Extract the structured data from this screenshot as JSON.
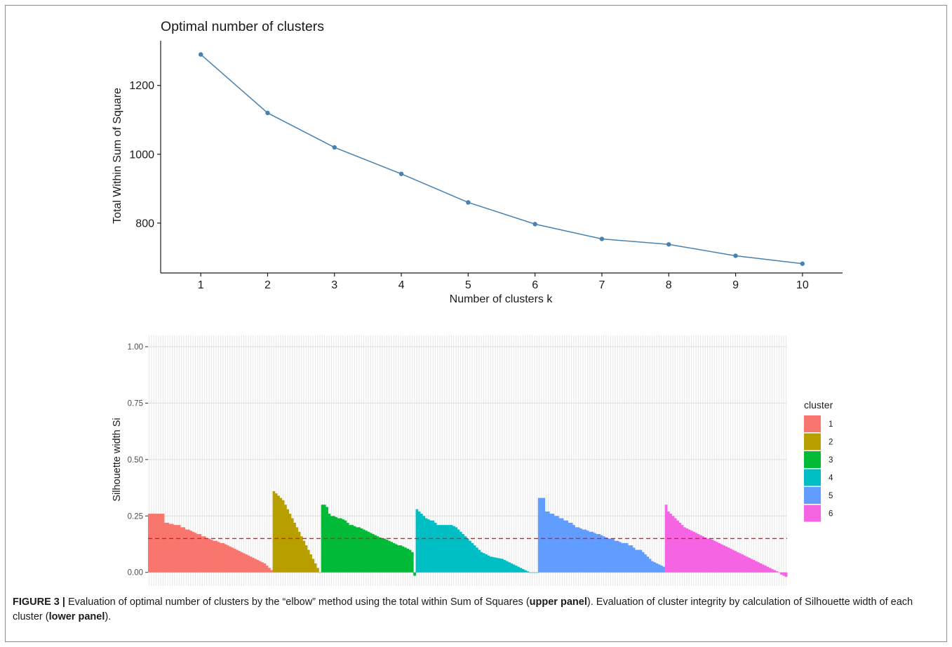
{
  "chart_data": [
    {
      "type": "line",
      "title": "Optimal number of clusters",
      "xlabel": "Number of clusters k",
      "ylabel": "Total Within Sum of Square",
      "x": [
        1,
        2,
        3,
        4,
        5,
        6,
        7,
        8,
        9,
        10
      ],
      "series": [
        {
          "values": [
            1290,
            1120,
            1020,
            943,
            860,
            797,
            754,
            738,
            705,
            682
          ]
        }
      ],
      "xlim": [
        0.4,
        10.6
      ],
      "ylim": [
        655,
        1330
      ],
      "yticks": [
        800,
        1000,
        1200
      ],
      "grid": false,
      "color": "#4682b4"
    },
    {
      "type": "bar",
      "ylabel": "Silhouette width Si",
      "xlabel": "",
      "ylim": [
        -0.06,
        1.05
      ],
      "yticks": [
        "0.00",
        "0.25",
        "0.50",
        "0.75",
        "1.00"
      ],
      "ytick_values": [
        0,
        0.25,
        0.5,
        0.75,
        1.0
      ],
      "average_line": 0.15,
      "average_line_color": "#e41a1c",
      "grid": true,
      "legend_title": "cluster",
      "legend_position": "right",
      "clusters": [
        {
          "name": "1",
          "color": "#f8766d",
          "values": [
            0.26,
            0.26,
            0.26,
            0.26,
            0.26,
            0.26,
            0.26,
            0.22,
            0.22,
            0.215,
            0.215,
            0.21,
            0.21,
            0.21,
            0.2,
            0.2,
            0.19,
            0.19,
            0.185,
            0.18,
            0.175,
            0.17,
            0.17,
            0.16,
            0.16,
            0.15,
            0.15,
            0.145,
            0.14,
            0.14,
            0.135,
            0.13,
            0.13,
            0.125,
            0.12,
            0.115,
            0.11,
            0.105,
            0.1,
            0.095,
            0.09,
            0.085,
            0.08,
            0.075,
            0.07,
            0.065,
            0.06,
            0.055,
            0.05,
            0.045,
            0.04,
            0.03,
            0.02,
            0.01
          ]
        },
        {
          "name": "2",
          "color": "#b79f00",
          "values": [
            0.36,
            0.35,
            0.34,
            0.33,
            0.32,
            0.3,
            0.28,
            0.26,
            0.24,
            0.22,
            0.2,
            0.18,
            0.16,
            0.14,
            0.12,
            0.1,
            0.08,
            0.06,
            0.04,
            0.02,
            0.0
          ]
        },
        {
          "name": "3",
          "color": "#00ba38",
          "values": [
            0.3,
            0.3,
            0.29,
            0.26,
            0.25,
            0.25,
            0.245,
            0.24,
            0.24,
            0.235,
            0.23,
            0.22,
            0.21,
            0.21,
            0.205,
            0.2,
            0.2,
            0.195,
            0.19,
            0.185,
            0.18,
            0.175,
            0.17,
            0.165,
            0.16,
            0.155,
            0.15,
            0.15,
            0.145,
            0.14,
            0.135,
            0.13,
            0.125,
            0.12,
            0.12,
            0.115,
            0.11,
            0.105,
            0.1,
            0.09,
            -0.015
          ]
        },
        {
          "name": "4",
          "color": "#00bfc4",
          "values": [
            0.28,
            0.27,
            0.26,
            0.25,
            0.24,
            0.235,
            0.23,
            0.23,
            0.22,
            0.21,
            0.21,
            0.21,
            0.21,
            0.21,
            0.21,
            0.21,
            0.205,
            0.2,
            0.19,
            0.18,
            0.17,
            0.16,
            0.15,
            0.14,
            0.13,
            0.12,
            0.11,
            0.1,
            0.09,
            0.085,
            0.08,
            0.075,
            0.07,
            0.068,
            0.066,
            0.064,
            0.062,
            0.06,
            0.055,
            0.05,
            0.045,
            0.04,
            0.035,
            0.03,
            0.025,
            0.02,
            0.015,
            0.01,
            0.005,
            0.0,
            0.0,
            0.0,
            0.0
          ]
        },
        {
          "name": "5",
          "color": "#619cff",
          "values": [
            0.33,
            0.33,
            0.33,
            0.27,
            0.27,
            0.26,
            0.26,
            0.25,
            0.25,
            0.24,
            0.24,
            0.23,
            0.23,
            0.22,
            0.22,
            0.21,
            0.2,
            0.2,
            0.195,
            0.19,
            0.19,
            0.185,
            0.18,
            0.18,
            0.175,
            0.17,
            0.17,
            0.165,
            0.16,
            0.155,
            0.15,
            0.15,
            0.15,
            0.14,
            0.14,
            0.135,
            0.13,
            0.13,
            0.13,
            0.12,
            0.12,
            0.11,
            0.1,
            0.1,
            0.1,
            0.09,
            0.08,
            0.07,
            0.06,
            0.05,
            0.045,
            0.04,
            0.035,
            0.03,
            0.025
          ]
        },
        {
          "name": "6",
          "color": "#f564e3",
          "values": [
            0.3,
            0.27,
            0.26,
            0.25,
            0.24,
            0.23,
            0.22,
            0.21,
            0.2,
            0.195,
            0.19,
            0.185,
            0.18,
            0.175,
            0.17,
            0.165,
            0.16,
            0.155,
            0.15,
            0.15,
            0.145,
            0.14,
            0.135,
            0.13,
            0.125,
            0.12,
            0.115,
            0.11,
            0.105,
            0.1,
            0.095,
            0.09,
            0.085,
            0.08,
            0.075,
            0.07,
            0.065,
            0.06,
            0.055,
            0.05,
            0.045,
            0.04,
            0.035,
            0.03,
            0.025,
            0.02,
            0.015,
            0.01,
            0.005,
            0.0,
            -0.01,
            -0.015,
            -0.02
          ]
        }
      ]
    }
  ],
  "caption": {
    "label": "FIGURE 3 |",
    "part1": " Evaluation of optimal number of clusters by the “elbow” method using the total within Sum of Squares (",
    "bold1": "upper panel",
    "part2": "). Evaluation of cluster integrity by calculation of Silhouette width of each cluster (",
    "bold2": "lower panel",
    "part3": ")."
  }
}
